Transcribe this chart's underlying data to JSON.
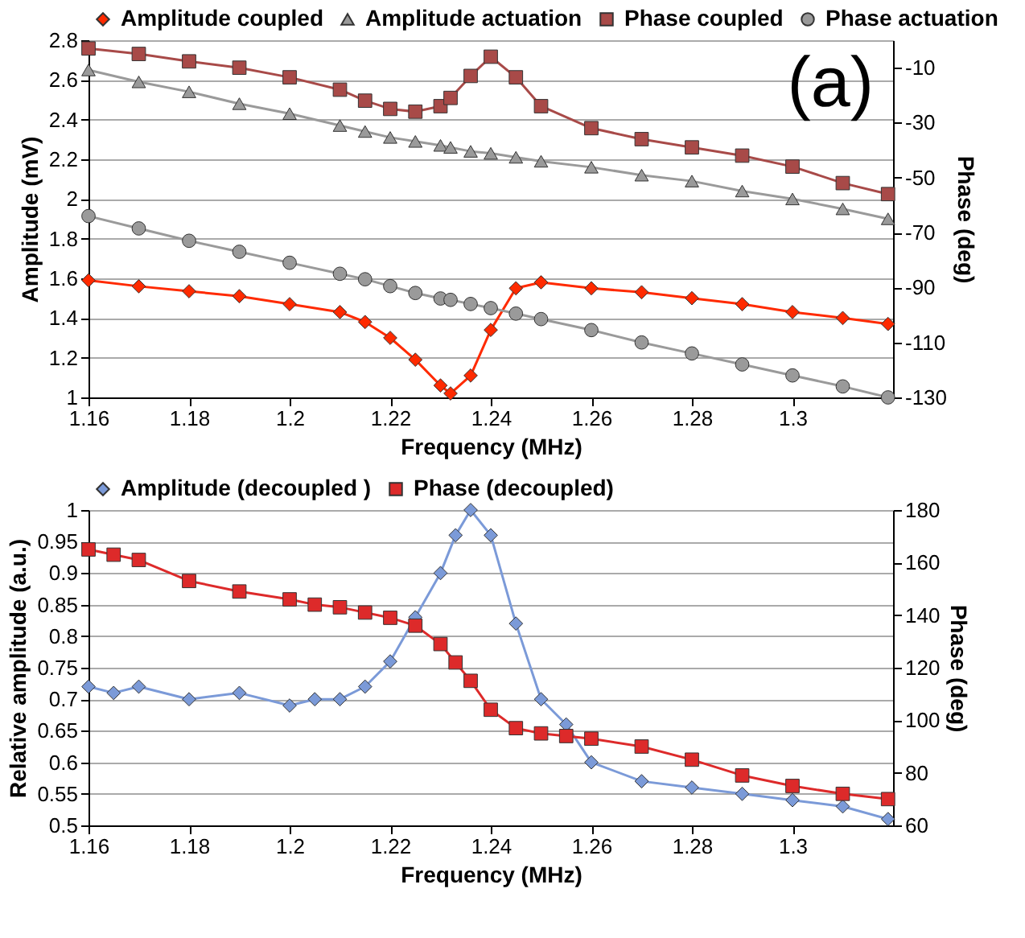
{
  "chart_data": [
    {
      "type": "line",
      "xlabel": "Frequency (MHz)",
      "ylabel": "Amplitude (mV)",
      "y2label": "Phase (deg)",
      "annotations": [
        "(a)"
      ],
      "xlim": [
        1.16,
        1.32
      ],
      "xticks": [
        1.16,
        1.18,
        1.2,
        1.22,
        1.24,
        1.26,
        1.28,
        1.3
      ],
      "ylim": [
        1,
        2.8
      ],
      "yticks": [
        1,
        1.2,
        1.4,
        1.6,
        1.8,
        2,
        2.2,
        2.4,
        2.6,
        2.8
      ],
      "y2lim": [
        -130,
        0
      ],
      "y2ticks": [
        -130,
        -110,
        -90,
        -70,
        -50,
        -30,
        -10
      ],
      "grid": "y",
      "legend": "top",
      "x": [
        1.16,
        1.17,
        1.18,
        1.19,
        1.2,
        1.21,
        1.215,
        1.22,
        1.225,
        1.23,
        1.232,
        1.236,
        1.24,
        1.245,
        1.25,
        1.26,
        1.27,
        1.28,
        1.29,
        1.3,
        1.31,
        1.319
      ],
      "series": [
        {
          "name": "Amplitude coupled",
          "color": "#ff2a00",
          "marker": "diamond",
          "values": [
            1.59,
            1.56,
            1.535,
            1.51,
            1.47,
            1.43,
            1.38,
            1.3,
            1.19,
            1.06,
            1.02,
            1.11,
            1.34,
            1.55,
            1.58,
            1.55,
            1.53,
            1.5,
            1.47,
            1.43,
            1.4,
            1.37
          ]
        },
        {
          "name": "Amplitude actuation",
          "color": "#9a9a9a",
          "marker": "triangle",
          "values": [
            2.65,
            2.59,
            2.54,
            2.48,
            2.43,
            2.37,
            2.34,
            2.31,
            2.29,
            2.27,
            2.26,
            2.24,
            2.23,
            2.21,
            2.19,
            2.16,
            2.12,
            2.09,
            2.04,
            2.0,
            1.95,
            1.9
          ]
        },
        {
          "name": "Phase coupled",
          "color": "#a84a48",
          "marker": "square",
          "axis": "y2",
          "values": [
            -3,
            -5,
            -7.7,
            -10,
            -13.5,
            -18,
            -22,
            -25,
            -26,
            -24,
            -21,
            -13,
            -6,
            -13.5,
            -24,
            -32,
            -36,
            -39,
            -42,
            -46,
            -52,
            -56
          ]
        },
        {
          "name": "Phase actuation",
          "color": "#9a9a9a",
          "marker": "circle",
          "axis": "y2",
          "values": [
            -64,
            -68.5,
            -73,
            -77,
            -81,
            -85,
            -87,
            -89.5,
            -92,
            -94,
            -94.5,
            -96,
            -97.5,
            -99.5,
            -101.5,
            -105.5,
            -110,
            -114,
            -118,
            -122,
            -126,
            -130
          ]
        }
      ]
    },
    {
      "type": "line",
      "xlabel": "Frequency (MHz)",
      "ylabel": "Relative amplitude (a.u.)",
      "y2label": "Phase (deg)",
      "xlim": [
        1.16,
        1.32
      ],
      "xticks": [
        1.16,
        1.18,
        1.2,
        1.22,
        1.24,
        1.26,
        1.28,
        1.3
      ],
      "ylim": [
        0.5,
        1
      ],
      "yticks": [
        0.5,
        0.55,
        0.6,
        0.65,
        0.7,
        0.75,
        0.8,
        0.85,
        0.9,
        0.95,
        1
      ],
      "y2lim": [
        60,
        180
      ],
      "y2ticks": [
        60,
        80,
        100,
        120,
        140,
        160,
        180
      ],
      "grid": "y",
      "legend": "top",
      "x": [
        1.16,
        1.165,
        1.17,
        1.18,
        1.19,
        1.2,
        1.205,
        1.21,
        1.215,
        1.22,
        1.225,
        1.23,
        1.233,
        1.236,
        1.24,
        1.245,
        1.25,
        1.255,
        1.26,
        1.27,
        1.28,
        1.29,
        1.3,
        1.31,
        1.319
      ],
      "series": [
        {
          "name": "Amplitude (decoupled )",
          "color": "#7b9ad8",
          "marker": "diamond",
          "values": [
            0.72,
            0.71,
            0.72,
            0.7,
            0.71,
            0.69,
            0.7,
            0.7,
            0.72,
            0.76,
            0.83,
            0.9,
            0.96,
            1.0,
            0.96,
            0.82,
            0.7,
            0.66,
            0.6,
            0.57,
            0.56,
            0.55,
            0.54,
            0.53,
            0.51
          ]
        },
        {
          "name": "Phase (decoupled)",
          "color": "#dd2a2a",
          "marker": "square",
          "axis": "y2",
          "values": [
            165,
            163,
            161,
            153,
            149,
            146,
            144,
            143,
            141,
            139,
            136,
            129,
            122,
            115,
            104,
            97,
            95,
            94,
            93,
            90,
            85,
            79,
            75,
            72,
            70
          ]
        }
      ]
    }
  ]
}
